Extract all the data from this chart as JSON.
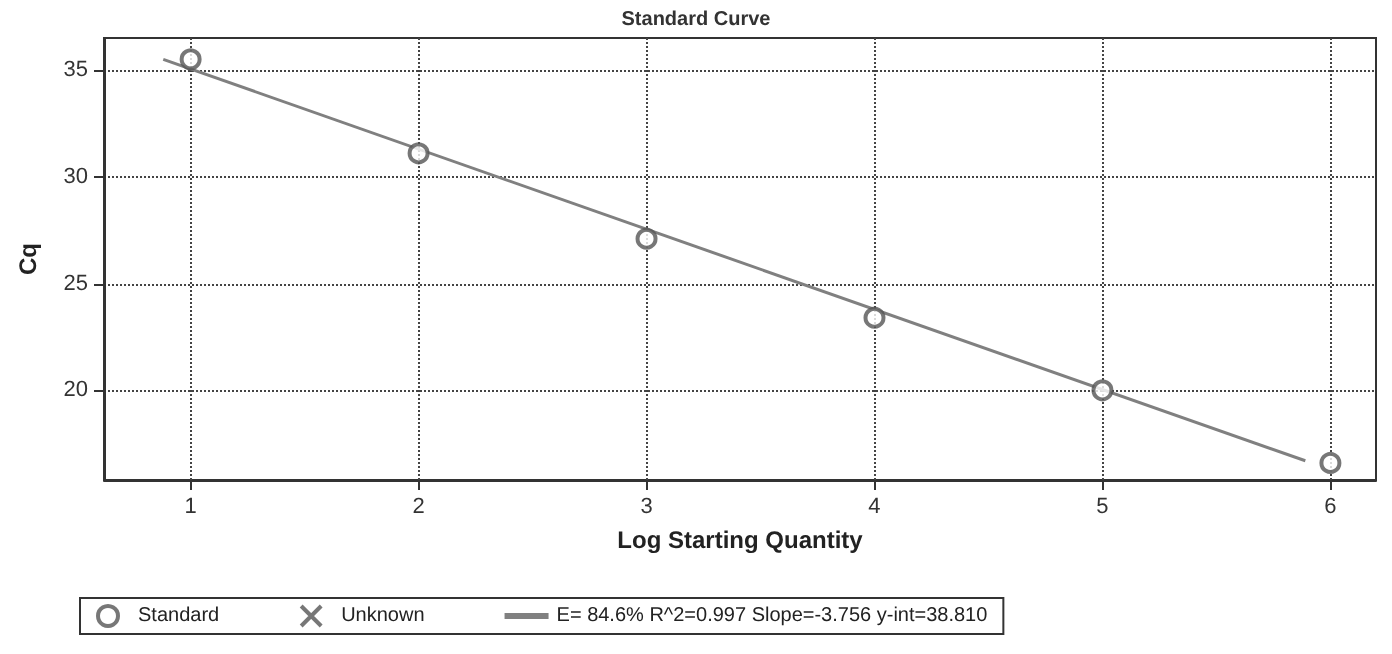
{
  "chart_data": {
    "type": "scatter",
    "title": "Standard Curve",
    "xlabel": "Log Starting Quantity",
    "ylabel": "Cq",
    "xlim": [
      0.62,
      6.2
    ],
    "xticks": [
      1,
      2,
      3,
      4,
      5,
      6
    ],
    "ylim": [
      15.8,
      36.5
    ],
    "yticks": [
      20,
      25,
      30,
      35
    ],
    "grid": true,
    "legend": "bottom",
    "line_style": "solid",
    "series": [
      {
        "name": "Standard",
        "type": "scatter",
        "marker": "circle",
        "color": "#555555",
        "x": [
          1,
          2,
          3,
          4,
          5,
          6
        ],
        "values": [
          35.5,
          31.1,
          27.1,
          23.4,
          20.0,
          16.6
        ]
      },
      {
        "name": "Unknown",
        "type": "scatter",
        "marker": "cross",
        "color": "#555555"
      },
      {
        "name": "E= 84.6% R^2=0.997 Slope=-3.756 y-int=38.810",
        "type": "line",
        "marker": "none",
        "color": "#808080",
        "x": [
          0.88,
          5.89
        ],
        "values": [
          35.5,
          16.7
        ]
      }
    ]
  }
}
